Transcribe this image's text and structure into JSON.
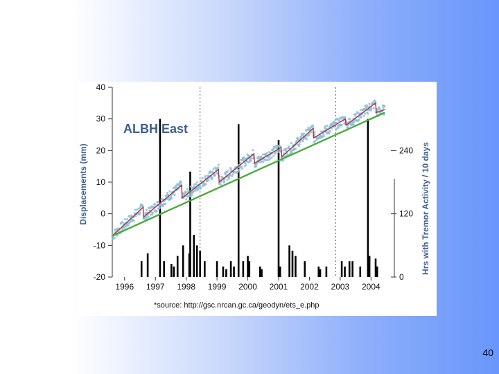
{
  "slide": {
    "number": "40"
  },
  "chart_data": {
    "type": "line",
    "title": "ALBH East",
    "ylabel_left": "Displacements (mm)",
    "ylabel_right": "Hrs with Tremor Activity / 10 days",
    "source": "*source: http://gsc.nrcan.gc.ca/geodyn/ets_e.php",
    "x_ticks": [
      "1996",
      "1997",
      "1998",
      "1999",
      "2000",
      "2001",
      "2002",
      "2003",
      "2004"
    ],
    "x_tick_values": [
      1996,
      1997,
      1998,
      1999,
      2000,
      2001,
      2002,
      2003,
      2004
    ],
    "xlim": [
      1995.6,
      2004.6
    ],
    "y_left_ticks": [
      "-20",
      "-10",
      "0",
      "10",
      "20",
      "30",
      "40"
    ],
    "y_left_tick_values": [
      -20,
      -10,
      0,
      10,
      20,
      30,
      40
    ],
    "ylim_left": [
      -20,
      40
    ],
    "y_right_ticks": [
      "0",
      "120",
      "240"
    ],
    "y_right_tick_values": [
      0,
      120,
      240
    ],
    "ylim_right": [
      0,
      360
    ],
    "grid": "vertical dotted lines at episodic tremor events",
    "event_lines": [
      1998.45,
      2002.85
    ],
    "colors": {
      "gps_points": "#8cc0dc",
      "sawtooth_fit": "#b03030",
      "linear_trend": "#4caa3a",
      "tremor_bars": "#000000",
      "axis": "#333333"
    },
    "series": [
      {
        "kind": "sawtooth_fit",
        "x": [
          1995.6,
          1996.6,
          1996.62,
          1997.85,
          1997.87,
          1999.05,
          1999.07,
          2000.2,
          2000.22,
          2001.08,
          2001.1,
          2002.12,
          2002.14,
          2003.17,
          2003.19,
          2004.15,
          2004.17,
          2004.45
        ],
        "y": [
          -7,
          2,
          -1,
          9,
          5,
          14,
          10,
          19,
          16,
          21,
          18,
          27,
          24,
          30,
          28,
          35,
          32,
          33
        ]
      },
      {
        "kind": "linear_trend",
        "x": [
          1995.6,
          2004.45
        ],
        "y": [
          -7,
          32
        ]
      }
    ],
    "tremor_bars": {
      "x": [
        1996.55,
        1996.75,
        1997.15,
        1997.28,
        1997.52,
        1997.6,
        1997.72,
        1997.9,
        1998.1,
        1998.13,
        1998.25,
        1998.35,
        1998.45,
        1998.6,
        1999.0,
        1999.2,
        1999.3,
        1999.45,
        1999.55,
        1999.7,
        1999.85,
        2000.0,
        2000.05,
        2000.4,
        2000.45,
        2001.0,
        2001.05,
        2001.35,
        2001.45,
        2001.55,
        2001.85,
        2002.3,
        2002.35,
        2002.55,
        2003.05,
        2003.15,
        2003.3,
        2003.4,
        2003.65,
        2003.9,
        2003.95,
        2004.15,
        2004.2
      ],
      "hours": [
        30,
        45,
        300,
        30,
        25,
        20,
        40,
        60,
        45,
        200,
        80,
        60,
        50,
        30,
        30,
        20,
        15,
        30,
        20,
        290,
        30,
        40,
        30,
        20,
        15,
        260,
        20,
        60,
        50,
        40,
        30,
        20,
        15,
        20,
        30,
        20,
        30,
        30,
        20,
        300,
        40,
        35,
        20
      ]
    }
  }
}
